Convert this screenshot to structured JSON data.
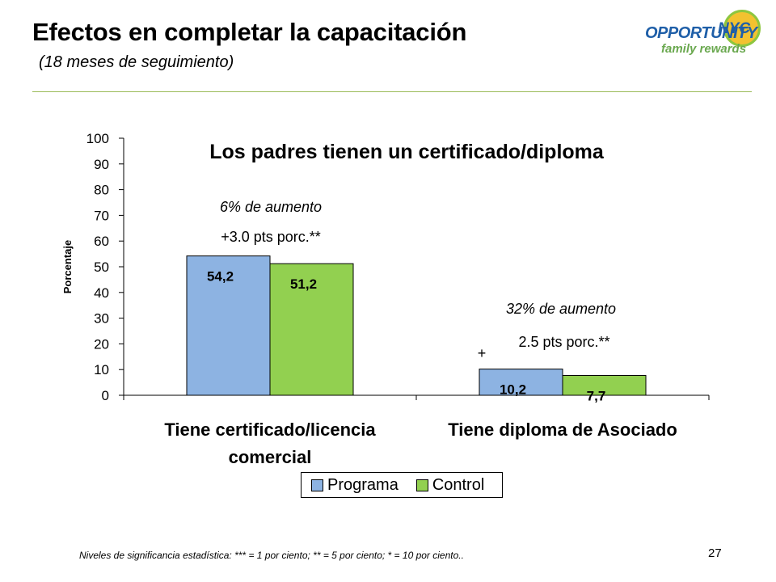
{
  "slide": {
    "title": "Efectos en completar la capacitación",
    "subtitle": "(18 meses de seguimiento)",
    "footnote": "Niveles de significancia estadística: *** = 1 por ciento; ** = 5 por ciento; * = 10 por ciento..",
    "page_number": "27"
  },
  "logo": {
    "word": "OPPORTUNITY",
    "nyc": "NYC",
    "tagline": "family rewards",
    "colors": {
      "blue": "#1f5fa8",
      "yellow": "#f2c230",
      "green": "#8dc63f"
    }
  },
  "chart_data": {
    "type": "bar",
    "title": "Los padres tienen un certificado/diploma",
    "ylabel": "Porcentaje",
    "xlabel": "",
    "ylim": [
      0,
      100
    ],
    "yticks": [
      0,
      10,
      20,
      30,
      40,
      50,
      60,
      70,
      80,
      90,
      100
    ],
    "grid": false,
    "legend_position": "bottom",
    "categories": [
      "Tiene certificado/licencia comercial",
      "Tiene diploma de Asociado"
    ],
    "category_lines": [
      [
        "Tiene certificado/licencia",
        "comercial"
      ],
      [
        "Tiene diploma de Asociado"
      ]
    ],
    "series": [
      {
        "name": "Programa",
        "values": [
          54.2,
          10.2
        ],
        "labels": [
          "54,2",
          "10,2"
        ],
        "color": "#8db3e2"
      },
      {
        "name": "Control",
        "values": [
          51.2,
          7.7
        ],
        "labels": [
          "51,2",
          "7,7"
        ],
        "color": "#92d050"
      }
    ],
    "annotations": [
      {
        "category": 0,
        "lines": [
          "6% de aumento",
          "+3.0 pts porc.**"
        ]
      },
      {
        "category": 1,
        "lines": [
          "32% de aumento",
          "2.5 pts porc.**"
        ],
        "marker": "+"
      }
    ]
  }
}
